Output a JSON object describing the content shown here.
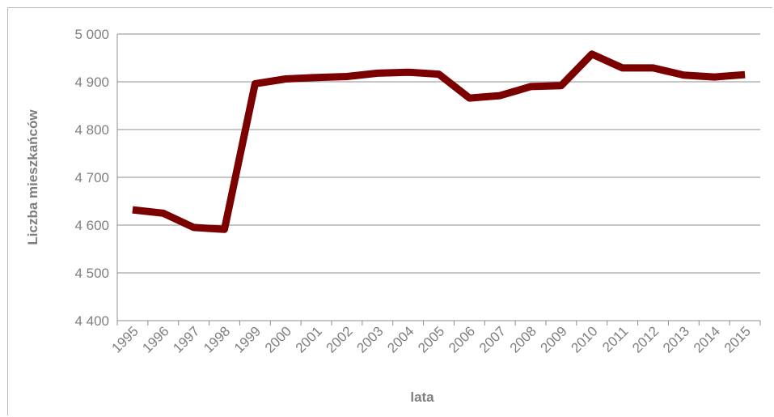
{
  "chart_data": {
    "type": "line",
    "title": "",
    "xlabel": "lata",
    "ylabel": "Liczba mieszkańców",
    "ylim": [
      4400,
      5000
    ],
    "yticks": [
      4400,
      4500,
      4600,
      4700,
      4800,
      4900,
      5000
    ],
    "ytick_labels": [
      "4 400",
      "4 500",
      "4 600",
      "4 700",
      "4 800",
      "4 900",
      "5 000"
    ],
    "grid": true,
    "legend": "none",
    "categories": [
      "1995",
      "1996",
      "1997",
      "1998",
      "1999",
      "2000",
      "2001",
      "2002",
      "2003",
      "2004",
      "2005",
      "2006",
      "2007",
      "2008",
      "2009",
      "2010",
      "2011",
      "2012",
      "2013",
      "2014",
      "2015"
    ],
    "series": [
      {
        "color": "#7b0000",
        "values": [
          4632,
          4625,
          4595,
          4591,
          4896,
          4906,
          4909,
          4911,
          4918,
          4920,
          4916,
          4866,
          4871,
          4890,
          4892,
          4958,
          4929,
          4929,
          4914,
          4910,
          4915
        ]
      }
    ]
  }
}
